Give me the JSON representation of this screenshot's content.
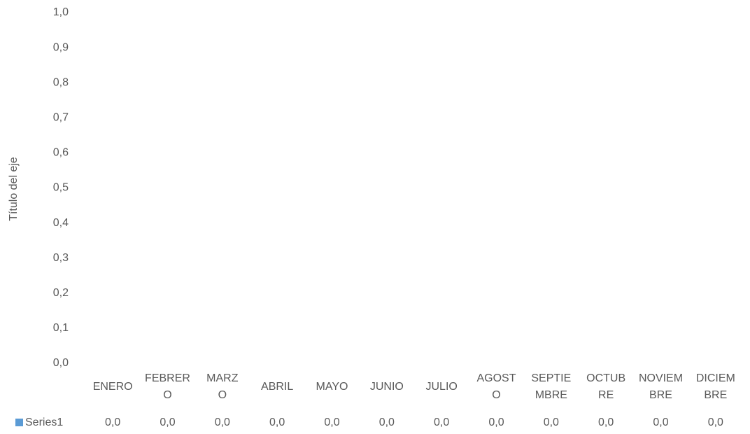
{
  "chart_data": {
    "type": "bar",
    "y_axis_label": "Título del eje",
    "categories": [
      "ENERO",
      "FEBRERO",
      "MARZO",
      "ABRIL",
      "MAYO",
      "JUNIO",
      "JULIO",
      "AGOSTO",
      "SEPTIEMBRE",
      "OCTUBRE",
      "NOVIEMBRE",
      "DICIEMBRE"
    ],
    "series": [
      {
        "name": "Series1",
        "color": "#5b9bd5",
        "values": [
          0,
          0,
          0,
          0,
          0,
          0,
          0,
          0,
          0,
          0,
          0,
          0
        ],
        "value_labels": [
          "0,0",
          "0,0",
          "0,0",
          "0,0",
          "0,0",
          "0,0",
          "0,0",
          "0,0",
          "0,0",
          "0,0",
          "0,0",
          "0,0"
        ]
      }
    ],
    "ylim": [
      0,
      1
    ],
    "yticks": [
      {
        "value": 0,
        "label": "0,0"
      },
      {
        "value": 0.1,
        "label": "0,1"
      },
      {
        "value": 0.2,
        "label": "0,2"
      },
      {
        "value": 0.3,
        "label": "0,3"
      },
      {
        "value": 0.4,
        "label": "0,4"
      },
      {
        "value": 0.5,
        "label": "0,5"
      },
      {
        "value": 0.6,
        "label": "0,6"
      },
      {
        "value": 0.7,
        "label": "0,7"
      },
      {
        "value": 0.8,
        "label": "0,8"
      },
      {
        "value": 0.9,
        "label": "0,9"
      },
      {
        "value": 1,
        "label": "1,0"
      }
    ],
    "grid": false
  }
}
